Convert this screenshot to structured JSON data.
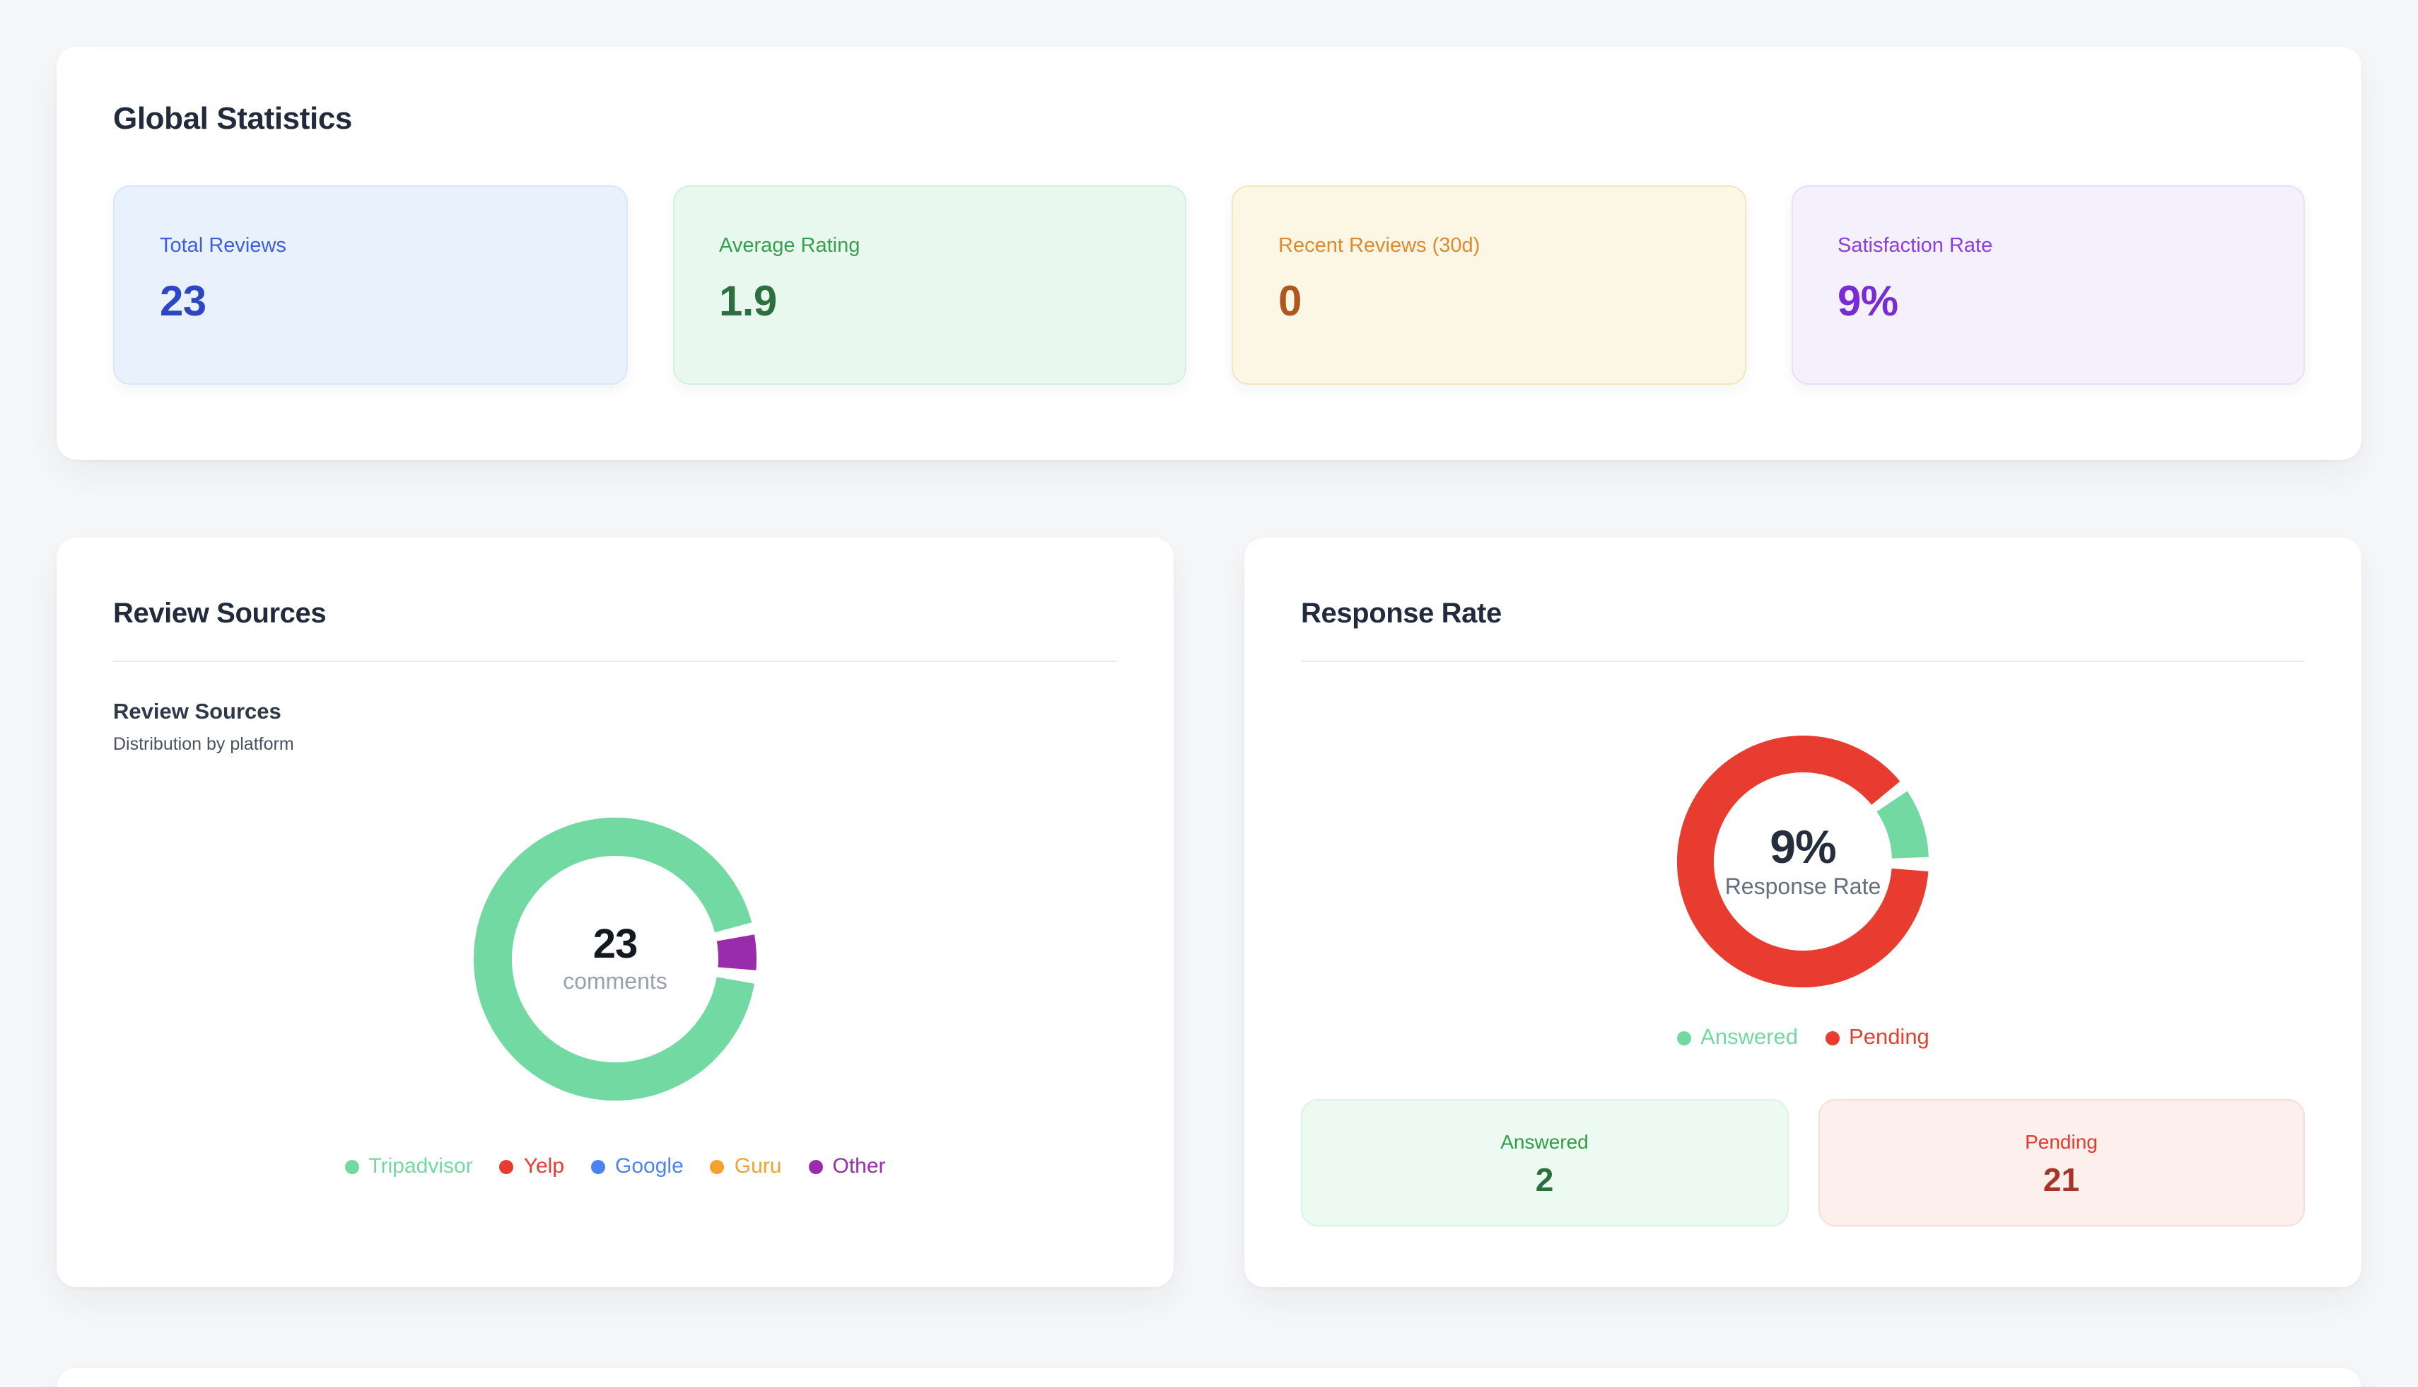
{
  "global_stats": {
    "title": "Global Statistics",
    "cards": [
      {
        "label": "Total Reviews",
        "value": "23",
        "colors": {
          "bg": "#e9f1fc",
          "border": "#d9e7f9",
          "label": "#3c5fe0",
          "value": "#2d46c3"
        }
      },
      {
        "label": "Average Rating",
        "value": "1.9",
        "colors": {
          "bg": "#e9f8ef",
          "border": "#d6f0e0",
          "label": "#37a04d",
          "value": "#2d6f3e"
        }
      },
      {
        "label": "Recent Reviews (30d)",
        "value": "0",
        "colors": {
          "bg": "#fcf7e5",
          "border": "#f3e7c0",
          "label": "#de8a2e",
          "value": "#af571e"
        }
      },
      {
        "label": "Satisfaction Rate",
        "value": "9%",
        "colors": {
          "bg": "#f5f1fc",
          "border": "#e8def7",
          "label": "#8b3ee0",
          "value": "#7a2cd4"
        }
      }
    ]
  },
  "review_sources": {
    "title": "Review Sources",
    "subtitle": "Review Sources",
    "description": "Distribution by platform",
    "center_value": "23",
    "center_label": "comments"
  },
  "response_rate": {
    "title": "Response Rate",
    "center_value": "9%",
    "center_label": "Response Rate",
    "boxes": [
      {
        "label": "Answered",
        "value": "2",
        "colors": {
          "bg": "#edfaf2",
          "border": "#daf3e5",
          "label": "#2f9e44",
          "value": "#2c6e3c"
        }
      },
      {
        "label": "Pending",
        "value": "21",
        "colors": {
          "bg": "#fdefec",
          "border": "#f9ddd8",
          "label": "#e5392f",
          "value": "#a83428"
        }
      }
    ]
  },
  "chart_data": [
    {
      "type": "pie",
      "variant": "donut",
      "title": "Review Sources",
      "subtitle": "Distribution by platform",
      "labels": [
        "Tripadvisor",
        "Yelp",
        "Google",
        "Guru",
        "Other"
      ],
      "values": [
        22,
        0,
        0,
        0,
        1
      ],
      "total": 23,
      "colors": [
        "#72d9a3",
        "#e83c30",
        "#4c83f1",
        "#f5a12f",
        "#992cab"
      ],
      "center_value": "23",
      "center_label": "comments",
      "legend_position": "bottom",
      "start_angle_deg": 95,
      "drawn": [
        {
          "from": 100,
          "to": 435
        },
        null,
        null,
        null,
        {
          "from": 80,
          "to": 94.5
        }
      ]
    },
    {
      "type": "pie",
      "variant": "donut",
      "title": "Response Rate",
      "labels": [
        "Answered",
        "Pending"
      ],
      "values": [
        2,
        21
      ],
      "total": 23,
      "colors": [
        "#72d9a3",
        "#e83c30"
      ],
      "center_value": "9%",
      "center_label": "Response Rate",
      "legend_position": "bottom",
      "start_angle_deg": 56,
      "drawn": [
        {
          "from": 56,
          "to": 88
        },
        {
          "from": 94.5,
          "to": 410.5
        }
      ]
    }
  ]
}
